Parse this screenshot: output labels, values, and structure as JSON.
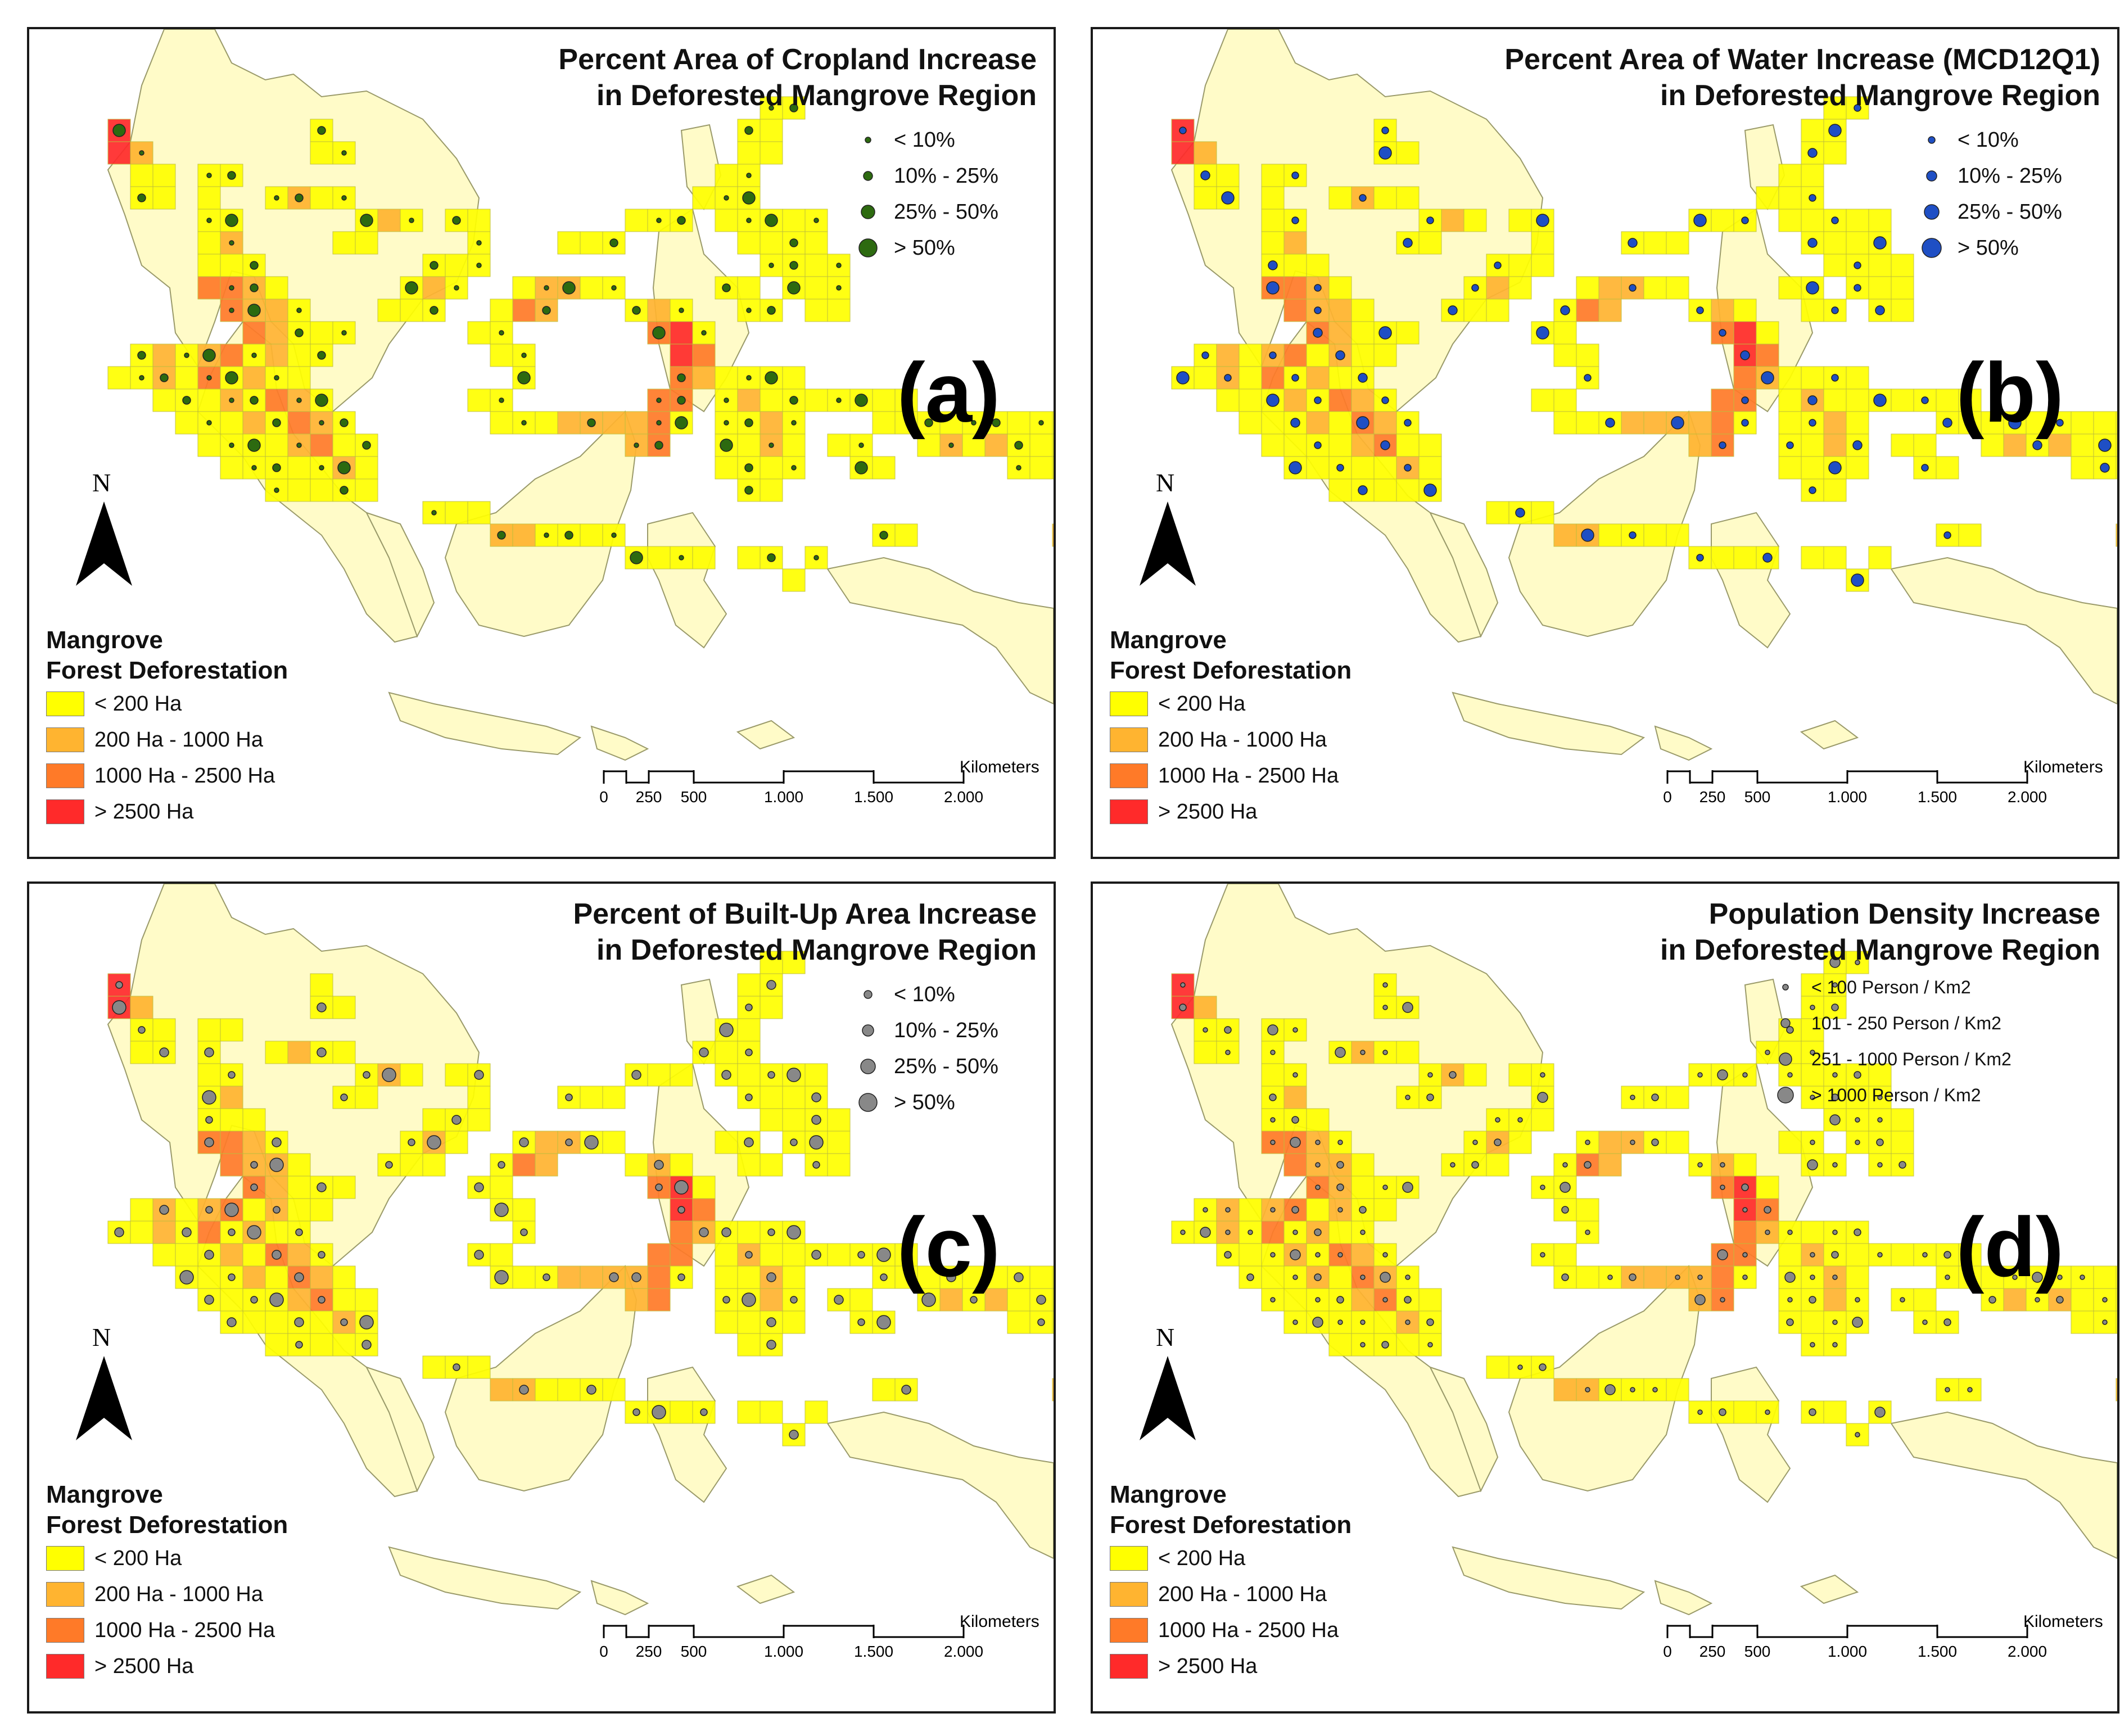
{
  "colors": {
    "land": "#fffbc8",
    "cell_low": "#ffff00",
    "cell_mid": "#ffb430",
    "cell_high": "#ff7a28",
    "cell_max": "#ff2a2a",
    "crop_dot": "#2d6a10",
    "water_dot": "#1f4fc4",
    "gray_dot": "#888888"
  },
  "deforestation_legend": {
    "title_line1": "Mangrove",
    "title_line2": "Forest Deforestation",
    "classes": [
      "< 200 Ha",
      "200 Ha - 1000 Ha",
      "1000 Ha - 2500 Ha",
      "> 2500 Ha"
    ]
  },
  "north_label": "N",
  "scale": {
    "unit": "Kilometers",
    "ticks": [
      "0",
      "250",
      "500",
      "1.000",
      "1.500",
      "2.000"
    ]
  },
  "panels": [
    {
      "id": "a",
      "title_line1": "Percent Area of Cropland Increase",
      "title_line2": "in Deforested Mangrove Region",
      "letter": "(a)",
      "symbol_color": "crop_dot",
      "classes": [
        "< 10%",
        "10% - 25%",
        "25% - 50%",
        "> 50%"
      ]
    },
    {
      "id": "b",
      "title_line1": "Percent Area of Water Increase (MCD12Q1)",
      "title_line2": "in Deforested Mangrove Region",
      "letter": "(b)",
      "symbol_color": "water_dot",
      "classes": [
        "< 10%",
        "10% - 25%",
        "25% - 50%",
        "> 50%"
      ]
    },
    {
      "id": "c",
      "title_line1": "Percent of Built-Up Area Increase",
      "title_line2": "in Deforested Mangrove Region",
      "letter": "(c)",
      "symbol_color": "gray_dot",
      "classes": [
        "< 10%",
        "10% - 25%",
        "25% - 50%",
        "> 50%"
      ]
    },
    {
      "id": "d",
      "title_line1": "Population Density Increase",
      "title_line2": "in Deforested Mangrove Region",
      "letter": "(d)",
      "symbol_color": "gray_dot",
      "classes": [
        "< 100 Person / Km2",
        "101 - 250 Person / Km2",
        "251 - 1000 Person / Km2",
        "> 1000 Person / Km2"
      ]
    }
  ]
}
